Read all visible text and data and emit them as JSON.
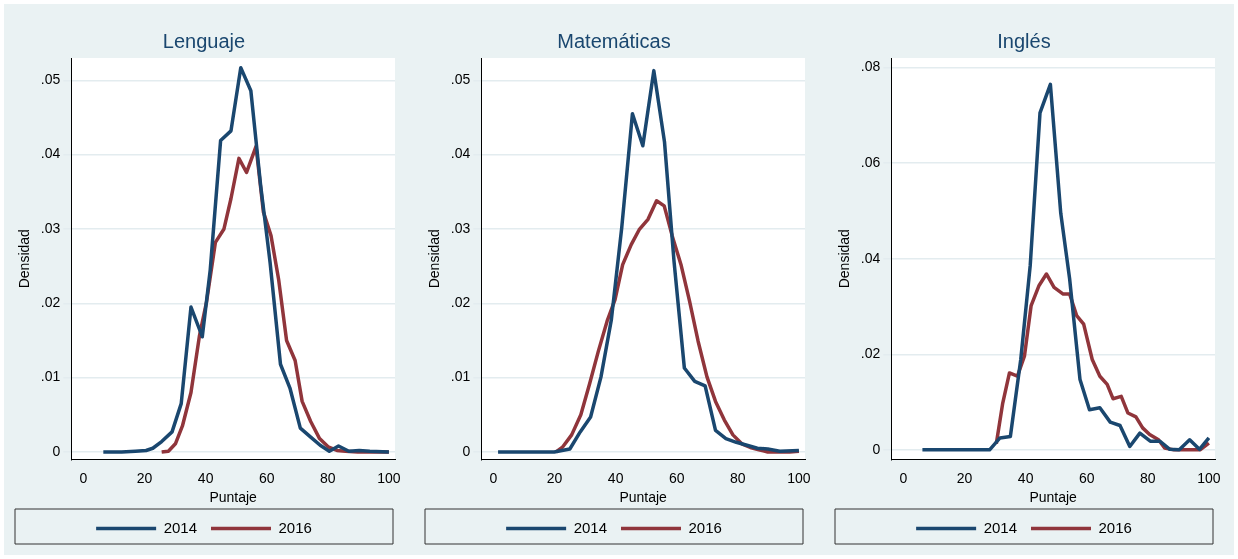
{
  "chart_data": [
    {
      "type": "line",
      "title": "Lenguaje",
      "xlabel": "Puntaje",
      "ylabel": "Densidad",
      "xlim": [
        -4,
        102
      ],
      "ylim": [
        -0.001,
        0.053
      ],
      "xticks": [
        0,
        20,
        40,
        60,
        80,
        100
      ],
      "yticks": [
        {
          "value": 0,
          "label": "0"
        },
        {
          "value": 0.01,
          "label": ".01"
        },
        {
          "value": 0.02,
          "label": ".02"
        },
        {
          "value": 0.03,
          "label": ".03"
        },
        {
          "value": 0.04,
          "label": ".04"
        },
        {
          "value": 0.05,
          "label": ".05"
        }
      ],
      "grid": "y",
      "legend": "bottom",
      "series": [
        {
          "name": "2014",
          "color": "#1a476f",
          "x": [
            6.5,
            12.5,
            17,
            20.5,
            22.7,
            25.6,
            29,
            32,
            35.2,
            38.9,
            41.5,
            44.9,
            48.3,
            51.5,
            54.8,
            58,
            61.1,
            64.5,
            67.6,
            71,
            74.4,
            77.5,
            80.5,
            83.5,
            86.9,
            90.3,
            93.75,
            100
          ],
          "values": [
            0,
            0,
            0.0001,
            0.0002,
            0.0005,
            0.0014,
            0.0027,
            0.0065,
            0.0195,
            0.0155,
            0.0245,
            0.0419,
            0.0432,
            0.0517,
            0.0486,
            0.0359,
            0.0255,
            0.0118,
            0.0086,
            0.0032,
            0.002,
            0.0009,
            0.0001,
            0.0008,
            0.0001,
            0.0002,
            0.0001,
            0
          ]
        },
        {
          "name": "2016",
          "color": "#90353b",
          "x": [
            25.6,
            27.8,
            30.1,
            32.4,
            35.2,
            38,
            40.3,
            43.2,
            46,
            48.3,
            50.9,
            53.4,
            56.5,
            58.9,
            61.4,
            63.9,
            66.5,
            69.3,
            71.6,
            74.4,
            77.3,
            80.1,
            83,
            85.8,
            89.8,
            100
          ],
          "values": [
            0,
            0.0001,
            0.0011,
            0.0035,
            0.008,
            0.0157,
            0.0202,
            0.0282,
            0.03,
            0.0341,
            0.0395,
            0.0376,
            0.0411,
            0.0323,
            0.0291,
            0.0232,
            0.015,
            0.0123,
            0.0068,
            0.0041,
            0.0018,
            0.0007,
            0.0002,
            0.0001,
            0,
            0
          ]
        }
      ]
    },
    {
      "type": "line",
      "title": "Matemáticas",
      "xlabel": "Puntaje",
      "ylabel": "Densidad",
      "xlim": [
        -4,
        102
      ],
      "ylim": [
        -0.001,
        0.053
      ],
      "xticks": [
        0,
        20,
        40,
        60,
        80,
        100
      ],
      "yticks": [
        {
          "value": 0,
          "label": "0"
        },
        {
          "value": 0.01,
          "label": ".01"
        },
        {
          "value": 0.02,
          "label": ".02"
        },
        {
          "value": 0.03,
          "label": ".03"
        },
        {
          "value": 0.04,
          "label": ".04"
        },
        {
          "value": 0.05,
          "label": ".05"
        }
      ],
      "grid": "y",
      "legend": "bottom",
      "series": [
        {
          "name": "2014",
          "color": "#1a476f",
          "x": [
            1.5,
            19.9,
            25,
            28.4,
            31.8,
            35.2,
            38.6,
            42,
            45.5,
            48.9,
            52.5,
            56,
            59.1,
            62.5,
            65.9,
            69.3,
            72.7,
            76.1,
            79.5,
            83,
            86.4,
            89.8,
            93.75,
            100
          ],
          "values": [
            0,
            0,
            0.0004,
            0.0027,
            0.0047,
            0.0101,
            0.0178,
            0.0302,
            0.0455,
            0.0412,
            0.0513,
            0.0417,
            0.0257,
            0.0113,
            0.0095,
            0.0089,
            0.0029,
            0.0018,
            0.0013,
            0.0009,
            0.0005,
            0.0004,
            0.0001,
            0.0002
          ]
        },
        {
          "name": "2016",
          "color": "#90353b",
          "x": [
            20.5,
            22.7,
            25.6,
            28.6,
            31.5,
            34.3,
            37.2,
            39.8,
            42.3,
            45.1,
            47.7,
            50.6,
            53.4,
            55.9,
            58.5,
            61.4,
            64.2,
            67,
            69.9,
            72.7,
            75.6,
            78.4,
            81.3,
            84.1,
            86.9,
            89.8,
            97,
            100
          ],
          "values": [
            0,
            0.0007,
            0.0023,
            0.005,
            0.0092,
            0.0135,
            0.0176,
            0.0205,
            0.0252,
            0.0279,
            0.0299,
            0.0313,
            0.0338,
            0.0331,
            0.0291,
            0.0252,
            0.0203,
            0.0149,
            0.0101,
            0.0068,
            0.0043,
            0.0023,
            0.0011,
            0.0006,
            0.0003,
            0,
            0,
            0.0001
          ]
        }
      ]
    },
    {
      "type": "line",
      "title": "Inglés",
      "xlabel": "Puntaje",
      "ylabel": "Densidad",
      "xlim": [
        -4,
        102
      ],
      "ylim": [
        -0.002,
        0.082
      ],
      "xticks": [
        0,
        20,
        40,
        60,
        80,
        100
      ],
      "yticks": [
        {
          "value": 0,
          "label": "0"
        },
        {
          "value": 0.02,
          "label": ".02"
        },
        {
          "value": 0.04,
          "label": ".04"
        },
        {
          "value": 0.06,
          "label": ".06"
        },
        {
          "value": 0.08,
          "label": ".08"
        }
      ],
      "grid": "y",
      "legend": "bottom",
      "series": [
        {
          "name": "2014",
          "color": "#1a476f",
          "x": [
            6.2,
            28.2,
            31.6,
            35,
            38.4,
            41.5,
            44.7,
            48.1,
            51.5,
            54.4,
            57.8,
            60.9,
            64.3,
            67.7,
            70.9,
            74.1,
            77.4,
            80.8,
            84,
            87.2,
            90.3,
            93.7,
            96.9,
            100
          ],
          "values": [
            0,
            0,
            0.0025,
            0.0028,
            0.0189,
            0.0386,
            0.0705,
            0.0765,
            0.0495,
            0.0358,
            0.0147,
            0.0084,
            0.0088,
            0.0058,
            0.0051,
            0.0007,
            0.0035,
            0.0018,
            0.0018,
            0.0001,
            0,
            0.0021,
            0.0001,
            0.0025
          ]
        },
        {
          "name": "2016",
          "color": "#90353b",
          "x": [
            30.4,
            32.5,
            34.7,
            37.3,
            39.6,
            41.8,
            44.4,
            46.8,
            49.3,
            52.3,
            54.4,
            56.7,
            59,
            61.8,
            64.3,
            66.7,
            68.6,
            71.3,
            73.5,
            76.1,
            78.3,
            80.6,
            83.5,
            85.5,
            88.6,
            97.1,
            100
          ],
          "values": [
            0.0013,
            0.0098,
            0.0161,
            0.0154,
            0.0196,
            0.0302,
            0.0344,
            0.0368,
            0.034,
            0.0326,
            0.0326,
            0.0281,
            0.0263,
            0.0189,
            0.0154,
            0.0137,
            0.0107,
            0.0112,
            0.0077,
            0.0069,
            0.0046,
            0.0032,
            0.0021,
            0.0004,
            0,
            0,
            0.0014
          ]
        }
      ]
    }
  ]
}
